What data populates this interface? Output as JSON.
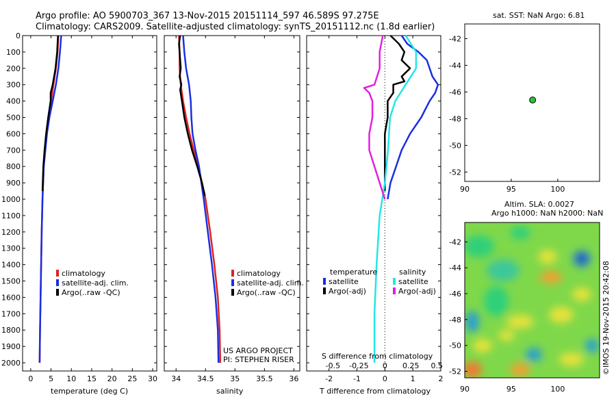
{
  "header": {
    "line1": "Argo profile: AO 5900703_367 13-Nov-2015 20151114_597 46.589S 97.275E",
    "line2": "Climatology: CARS2009. Satellite-adjusted climatology: synTS_20151112.nc (1.8d earlier)"
  },
  "credits": {
    "project": "US ARGO PROJECT",
    "pi": "PI: STEPHEN RISER",
    "imos": "©IMOS 19-Nov-2015 20:42:08"
  },
  "colors": {
    "climatology": "#e02020",
    "satellite": "#1a2ee0",
    "argo": "#000000",
    "salinity_satellite": "#22e6e6",
    "salinity_argo": "#e020e0",
    "float_marker": "#30c030"
  },
  "chart_data": [
    {
      "type": "line",
      "id": "temperature",
      "xlabel": "temperature (deg C)",
      "ylabel": "",
      "xlim": [
        -2,
        31
      ],
      "ylim": [
        2050,
        0
      ],
      "xticks": [
        "0",
        "5",
        "10",
        "15",
        "20",
        "25",
        "30"
      ],
      "xtick_values": [
        0,
        5,
        10,
        15,
        20,
        25,
        30
      ],
      "yticks": [
        "0",
        "100",
        "200",
        "300",
        "400",
        "500",
        "600",
        "700",
        "800",
        "900",
        "1000",
        "1100",
        "1200",
        "1300",
        "1400",
        "1500",
        "1600",
        "1700",
        "1800",
        "1900",
        "2000"
      ],
      "ytick_values": [
        0,
        100,
        200,
        300,
        400,
        500,
        600,
        700,
        800,
        900,
        1000,
        1100,
        1200,
        1300,
        1400,
        1500,
        1600,
        1700,
        1800,
        1900,
        2000
      ],
      "legend": [
        "climatology",
        "satellite-adj. clim.",
        "Argo(..raw -QC)"
      ],
      "series": [
        {
          "name": "climatology",
          "depth": [
            0,
            100,
            200,
            300,
            400,
            500,
            600,
            700,
            800,
            1000,
            1200,
            1500,
            1800,
            2000
          ],
          "values": [
            6.8,
            6.6,
            6.2,
            5.6,
            5.0,
            4.4,
            3.9,
            3.5,
            3.2,
            2.9,
            2.7,
            2.5,
            2.3,
            2.2
          ]
        },
        {
          "name": "satellite-adj. clim.",
          "depth": [
            0,
            100,
            200,
            300,
            400,
            500,
            600,
            700,
            800,
            1000,
            1200,
            1500,
            1800,
            2000
          ],
          "values": [
            7.5,
            7.2,
            6.8,
            6.2,
            5.4,
            4.6,
            4.0,
            3.6,
            3.2,
            2.9,
            2.7,
            2.5,
            2.3,
            2.2
          ]
        },
        {
          "name": "Argo(..raw -QC)",
          "depth": [
            0,
            100,
            200,
            300,
            350,
            400,
            500,
            600,
            700,
            800,
            950
          ],
          "values": [
            6.7,
            6.5,
            6.1,
            5.4,
            4.9,
            4.9,
            4.3,
            3.8,
            3.4,
            3.1,
            2.9
          ]
        }
      ]
    },
    {
      "type": "line",
      "id": "salinity",
      "xlabel": "salinity",
      "xlim": [
        33.8,
        36.1
      ],
      "ylim": [
        2050,
        0
      ],
      "xticks": [
        "34",
        "34.5",
        "35",
        "35.5",
        "36"
      ],
      "xtick_values": [
        34,
        34.5,
        35,
        35.5,
        36
      ],
      "legend": [
        "climatology",
        "satellite-adj. clim.",
        "Argo(..raw -QC)"
      ],
      "series": [
        {
          "name": "climatology",
          "depth": [
            0,
            100,
            200,
            300,
            400,
            500,
            600,
            700,
            800,
            900,
            1000,
            1200,
            1400,
            1600,
            1800,
            2000
          ],
          "values": [
            34.05,
            34.06,
            34.06,
            34.08,
            34.12,
            34.17,
            34.23,
            34.3,
            34.38,
            34.44,
            34.5,
            34.58,
            34.65,
            34.71,
            34.74,
            34.75
          ]
        },
        {
          "name": "satellite-adj. clim.",
          "depth": [
            0,
            100,
            200,
            300,
            400,
            500,
            600,
            700,
            800,
            900,
            1000,
            1200,
            1400,
            1600,
            1800,
            2000
          ],
          "values": [
            34.12,
            34.14,
            34.17,
            34.22,
            34.25,
            34.26,
            34.28,
            34.33,
            34.39,
            34.43,
            34.47,
            34.54,
            34.61,
            34.67,
            34.71,
            34.72
          ]
        },
        {
          "name": "Argo(..raw -QC)",
          "depth": [
            0,
            50,
            100,
            200,
            250,
            300,
            330,
            400,
            500,
            600,
            700,
            800,
            900,
            980
          ],
          "values": [
            34.07,
            34.05,
            34.06,
            34.08,
            34.06,
            34.09,
            34.07,
            34.1,
            34.14,
            34.2,
            34.27,
            34.36,
            34.44,
            34.49
          ]
        }
      ]
    },
    {
      "type": "line",
      "id": "difference",
      "xlabel": "T difference from climatology",
      "xlabel2": "S difference from climatology",
      "xlim": [
        -2.8,
        2.0
      ],
      "ylim": [
        2050,
        0
      ],
      "xticks": [
        "-2",
        "-1",
        "0",
        "1",
        "2"
      ],
      "xtick_values": [
        -2,
        -1,
        0,
        1,
        2
      ],
      "xticks_top": [
        "-0.5",
        "-0.25",
        "0",
        "0.25",
        "0.5"
      ],
      "xtick_top_values": [
        -0.5,
        -0.25,
        0,
        0.25,
        0.5
      ],
      "legend_titles": [
        "temperature",
        "salinity"
      ],
      "legend": [
        "satellite",
        "Argo(-adj)",
        "satellite",
        "Argo(-adj)"
      ],
      "series": [
        {
          "name": "satellite",
          "group": "temperature",
          "depth": [
            0,
            50,
            100,
            150,
            200,
            250,
            300,
            350,
            400,
            500,
            600,
            700,
            800,
            900,
            1000
          ],
          "values": [
            0.6,
            0.8,
            1.2,
            1.5,
            1.6,
            1.7,
            1.9,
            1.8,
            1.6,
            1.3,
            0.9,
            0.6,
            0.4,
            0.2,
            0.1
          ]
        },
        {
          "name": "Argo(-adj)",
          "group": "temperature",
          "depth": [
            0,
            50,
            100,
            150,
            200,
            250,
            280,
            300,
            350,
            400,
            500,
            600,
            700,
            800,
            950
          ],
          "values": [
            0.2,
            0.5,
            0.7,
            0.6,
            0.9,
            0.6,
            0.7,
            0.3,
            0.3,
            0.1,
            0.1,
            0.0,
            0.0,
            0.0,
            0.0
          ]
        },
        {
          "name": "satellite",
          "group": "salinity",
          "depth": [
            0,
            100,
            200,
            300,
            400,
            500,
            700,
            900,
            1100,
            1400,
            1700,
            2000
          ],
          "values": [
            0.2,
            0.3,
            0.3,
            0.2,
            0.1,
            0.05,
            0.03,
            0.0,
            -0.05,
            -0.08,
            -0.1,
            -0.1
          ]
        },
        {
          "name": "Argo(-adj)",
          "group": "salinity",
          "depth": [
            0,
            100,
            200,
            300,
            320,
            350,
            400,
            500,
            600,
            700,
            800,
            900,
            1000
          ],
          "values": [
            -0.02,
            -0.05,
            -0.05,
            -0.1,
            -0.2,
            -0.15,
            -0.12,
            -0.12,
            -0.15,
            -0.15,
            -0.1,
            -0.05,
            0.0
          ]
        }
      ]
    },
    {
      "type": "scatter",
      "id": "sst_map",
      "title": "sat. SST: NaN Argo: 6.81",
      "xlim": [
        90,
        104.5
      ],
      "ylim": [
        -52.7,
        -40.9
      ],
      "xticks": [
        "90",
        "95",
        "100"
      ],
      "xtick_values": [
        90,
        95,
        100
      ],
      "yticks": [
        "-42",
        "-44",
        "-46",
        "-48",
        "-50",
        "-52"
      ],
      "ytick_values": [
        -42,
        -44,
        -46,
        -48,
        -50,
        -52
      ],
      "points": [
        {
          "x": 97.3,
          "y": -46.6
        }
      ]
    },
    {
      "type": "heatmap",
      "id": "sla_map",
      "title1": "Altim. SLA: 0.0027",
      "title2": "Argo h1000: NaN h2000: NaN",
      "xlim": [
        90,
        104.5
      ],
      "ylim": [
        -52.5,
        -40.5
      ],
      "xticks": [
        "90",
        "95",
        "100"
      ],
      "xtick_values": [
        90,
        95,
        100
      ],
      "yticks": [
        "-42",
        "-44",
        "-46",
        "-48",
        "-50",
        "-52"
      ],
      "ytick_values": [
        -42,
        -44,
        -46,
        -48,
        -50,
        -52
      ]
    }
  ]
}
